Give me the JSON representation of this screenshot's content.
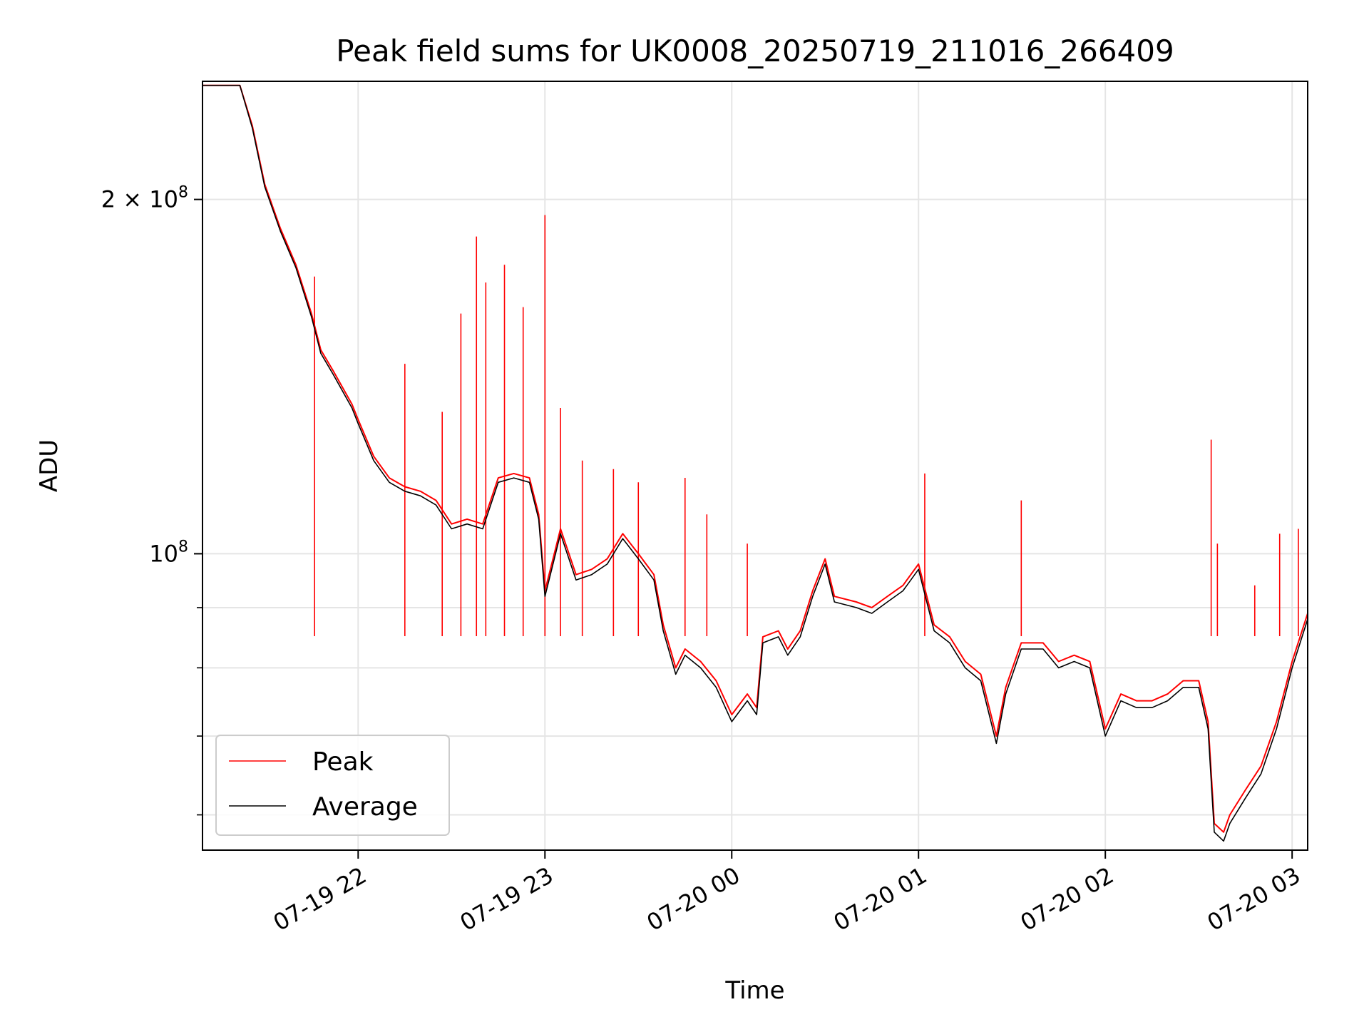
{
  "chart_data": {
    "type": "line",
    "title": "Peak field sums for UK0008_20250719_211016_266409",
    "xlabel": "Time",
    "ylabel": "ADU",
    "yscale": "log",
    "ylim": [
      56000000,
      252000000
    ],
    "xlim": [
      "2025-07-19 21:10",
      "2025-07-20 03:05"
    ],
    "x_tick_labels": [
      "07-19 22",
      "07-19 23",
      "07-20 00",
      "07-20 01",
      "07-20 02",
      "07-20 03"
    ],
    "x_ticks": [
      "2025-07-19 22:00",
      "2025-07-19 23:00",
      "2025-07-20 00:00",
      "2025-07-20 01:00",
      "2025-07-20 02:00",
      "2025-07-20 03:00"
    ],
    "y_tick_labels": [
      {
        "value": 200000000,
        "mantissa": "2",
        "exp": "8"
      },
      {
        "value": 100000000,
        "mantissa": "",
        "exp": "8"
      }
    ],
    "y_minor_ticks": [
      60000000,
      70000000,
      80000000,
      90000000
    ],
    "grid": true,
    "legend_position": "lower-left",
    "series": [
      {
        "name": "Average",
        "color": "#000000",
        "points": [
          [
            "2025-07-19 21:10",
            250000000
          ],
          [
            "2025-07-19 21:22",
            250000000
          ],
          [
            "2025-07-19 21:26",
            230000000
          ],
          [
            "2025-07-19 21:30",
            205000000
          ],
          [
            "2025-07-19 21:35",
            188000000
          ],
          [
            "2025-07-19 21:40",
            175000000
          ],
          [
            "2025-07-19 21:45",
            159000000
          ],
          [
            "2025-07-19 21:48",
            148000000
          ],
          [
            "2025-07-19 21:52",
            142000000
          ],
          [
            "2025-07-19 21:58",
            133000000
          ],
          [
            "2025-07-19 22:00",
            129000000
          ],
          [
            "2025-07-19 22:05",
            120000000
          ],
          [
            "2025-07-19 22:10",
            115000000
          ],
          [
            "2025-07-19 22:15",
            113000000
          ],
          [
            "2025-07-19 22:20",
            112000000
          ],
          [
            "2025-07-19 22:25",
            110000000
          ],
          [
            "2025-07-19 22:30",
            105000000
          ],
          [
            "2025-07-19 22:35",
            106000000
          ],
          [
            "2025-07-19 22:40",
            105000000
          ],
          [
            "2025-07-19 22:45",
            115000000
          ],
          [
            "2025-07-19 22:50",
            116000000
          ],
          [
            "2025-07-19 22:55",
            115000000
          ],
          [
            "2025-07-19 22:58",
            107000000
          ],
          [
            "2025-07-19 23:00",
            92000000
          ],
          [
            "2025-07-19 23:03",
            99000000
          ],
          [
            "2025-07-19 23:05",
            104000000
          ],
          [
            "2025-07-19 23:10",
            95000000
          ],
          [
            "2025-07-19 23:15",
            96000000
          ],
          [
            "2025-07-19 23:20",
            98000000
          ],
          [
            "2025-07-19 23:25",
            103000000
          ],
          [
            "2025-07-19 23:30",
            99000000
          ],
          [
            "2025-07-19 23:35",
            95000000
          ],
          [
            "2025-07-19 23:38",
            86000000
          ],
          [
            "2025-07-19 23:42",
            79000000
          ],
          [
            "2025-07-19 23:45",
            82000000
          ],
          [
            "2025-07-19 23:50",
            80000000
          ],
          [
            "2025-07-19 23:55",
            77000000
          ],
          [
            "2025-07-20 00:00",
            72000000
          ],
          [
            "2025-07-20 00:05",
            75000000
          ],
          [
            "2025-07-20 00:08",
            73000000
          ],
          [
            "2025-07-20 00:10",
            84000000
          ],
          [
            "2025-07-20 00:15",
            85000000
          ],
          [
            "2025-07-20 00:18",
            82000000
          ],
          [
            "2025-07-20 00:22",
            85000000
          ],
          [
            "2025-07-20 00:26",
            92000000
          ],
          [
            "2025-07-20 00:30",
            98000000
          ],
          [
            "2025-07-20 00:33",
            91000000
          ],
          [
            "2025-07-20 00:40",
            90000000
          ],
          [
            "2025-07-20 00:45",
            89000000
          ],
          [
            "2025-07-20 00:50",
            91000000
          ],
          [
            "2025-07-20 00:55",
            93000000
          ],
          [
            "2025-07-20 01:00",
            97000000
          ],
          [
            "2025-07-20 01:05",
            86000000
          ],
          [
            "2025-07-20 01:10",
            84000000
          ],
          [
            "2025-07-20 01:15",
            80000000
          ],
          [
            "2025-07-20 01:20",
            78000000
          ],
          [
            "2025-07-20 01:25",
            69000000
          ],
          [
            "2025-07-20 01:28",
            76000000
          ],
          [
            "2025-07-20 01:33",
            83000000
          ],
          [
            "2025-07-20 01:40",
            83000000
          ],
          [
            "2025-07-20 01:45",
            80000000
          ],
          [
            "2025-07-20 01:50",
            81000000
          ],
          [
            "2025-07-20 01:55",
            80000000
          ],
          [
            "2025-07-20 02:00",
            70000000
          ],
          [
            "2025-07-20 02:05",
            75000000
          ],
          [
            "2025-07-20 02:10",
            74000000
          ],
          [
            "2025-07-20 02:15",
            74000000
          ],
          [
            "2025-07-20 02:20",
            75000000
          ],
          [
            "2025-07-20 02:25",
            77000000
          ],
          [
            "2025-07-20 02:30",
            77000000
          ],
          [
            "2025-07-20 02:33",
            71000000
          ],
          [
            "2025-07-20 02:35",
            58000000
          ],
          [
            "2025-07-20 02:38",
            57000000
          ],
          [
            "2025-07-20 02:40",
            59000000
          ],
          [
            "2025-07-20 02:45",
            62000000
          ],
          [
            "2025-07-20 02:50",
            65000000
          ],
          [
            "2025-07-20 02:55",
            71000000
          ],
          [
            "2025-07-20 03:00",
            80000000
          ],
          [
            "2025-07-20 03:05",
            88000000
          ]
        ]
      },
      {
        "name": "Peak",
        "color": "#ff0000",
        "points": [
          [
            "2025-07-19 21:10",
            250000000
          ],
          [
            "2025-07-19 21:22",
            250000000
          ],
          [
            "2025-07-19 21:26",
            231000000
          ],
          [
            "2025-07-19 21:30",
            206000000
          ],
          [
            "2025-07-19 21:35",
            189000000
          ],
          [
            "2025-07-19 21:40",
            176000000
          ],
          [
            "2025-07-19 21:45",
            160000000
          ],
          [
            "2025-07-19 21:48",
            149000000
          ],
          [
            "2025-07-19 21:52",
            143000000
          ],
          [
            "2025-07-19 21:58",
            134000000
          ],
          [
            "2025-07-19 22:00",
            130000000
          ],
          [
            "2025-07-19 22:05",
            121000000
          ],
          [
            "2025-07-19 22:10",
            116000000
          ],
          [
            "2025-07-19 22:15",
            114000000
          ],
          [
            "2025-07-19 22:20",
            113000000
          ],
          [
            "2025-07-19 22:25",
            111000000
          ],
          [
            "2025-07-19 22:30",
            106000000
          ],
          [
            "2025-07-19 22:35",
            107000000
          ],
          [
            "2025-07-19 22:40",
            106000000
          ],
          [
            "2025-07-19 22:45",
            116000000
          ],
          [
            "2025-07-19 22:50",
            117000000
          ],
          [
            "2025-07-19 22:55",
            116000000
          ],
          [
            "2025-07-19 22:58",
            108000000
          ],
          [
            "2025-07-19 23:00",
            93000000
          ],
          [
            "2025-07-19 23:03",
            100000000
          ],
          [
            "2025-07-19 23:05",
            105000000
          ],
          [
            "2025-07-19 23:10",
            96000000
          ],
          [
            "2025-07-19 23:15",
            97000000
          ],
          [
            "2025-07-19 23:20",
            99000000
          ],
          [
            "2025-07-19 23:25",
            104000000
          ],
          [
            "2025-07-19 23:30",
            100000000
          ],
          [
            "2025-07-19 23:35",
            96000000
          ],
          [
            "2025-07-19 23:38",
            87000000
          ],
          [
            "2025-07-19 23:42",
            80000000
          ],
          [
            "2025-07-19 23:45",
            83000000
          ],
          [
            "2025-07-19 23:50",
            81000000
          ],
          [
            "2025-07-19 23:55",
            78000000
          ],
          [
            "2025-07-20 00:00",
            73000000
          ],
          [
            "2025-07-20 00:05",
            76000000
          ],
          [
            "2025-07-20 00:08",
            74000000
          ],
          [
            "2025-07-20 00:10",
            85000000
          ],
          [
            "2025-07-20 00:15",
            86000000
          ],
          [
            "2025-07-20 00:18",
            83000000
          ],
          [
            "2025-07-20 00:22",
            86000000
          ],
          [
            "2025-07-20 00:26",
            93000000
          ],
          [
            "2025-07-20 00:30",
            99000000
          ],
          [
            "2025-07-20 00:33",
            92000000
          ],
          [
            "2025-07-20 00:40",
            91000000
          ],
          [
            "2025-07-20 00:45",
            90000000
          ],
          [
            "2025-07-20 00:50",
            92000000
          ],
          [
            "2025-07-20 00:55",
            94000000
          ],
          [
            "2025-07-20 01:00",
            98000000
          ],
          [
            "2025-07-20 01:05",
            87000000
          ],
          [
            "2025-07-20 01:10",
            85000000
          ],
          [
            "2025-07-20 01:15",
            81000000
          ],
          [
            "2025-07-20 01:20",
            79000000
          ],
          [
            "2025-07-20 01:25",
            70000000
          ],
          [
            "2025-07-20 01:28",
            77000000
          ],
          [
            "2025-07-20 01:33",
            84000000
          ],
          [
            "2025-07-20 01:40",
            84000000
          ],
          [
            "2025-07-20 01:45",
            81000000
          ],
          [
            "2025-07-20 01:50",
            82000000
          ],
          [
            "2025-07-20 01:55",
            81000000
          ],
          [
            "2025-07-20 02:00",
            71000000
          ],
          [
            "2025-07-20 02:05",
            76000000
          ],
          [
            "2025-07-20 02:10",
            75000000
          ],
          [
            "2025-07-20 02:15",
            75000000
          ],
          [
            "2025-07-20 02:20",
            76000000
          ],
          [
            "2025-07-20 02:25",
            78000000
          ],
          [
            "2025-07-20 02:30",
            78000000
          ],
          [
            "2025-07-20 02:33",
            72000000
          ],
          [
            "2025-07-20 02:35",
            59000000
          ],
          [
            "2025-07-20 02:38",
            58000000
          ],
          [
            "2025-07-20 02:40",
            60000000
          ],
          [
            "2025-07-20 02:45",
            63000000
          ],
          [
            "2025-07-20 02:50",
            66000000
          ],
          [
            "2025-07-20 02:55",
            72000000
          ],
          [
            "2025-07-20 03:00",
            81000000
          ],
          [
            "2025-07-20 03:05",
            89000000
          ]
        ],
        "spikes": [
          [
            "2025-07-19 21:46",
            172000000
          ],
          [
            "2025-07-19 22:15",
            145000000
          ],
          [
            "2025-07-19 22:27",
            132000000
          ],
          [
            "2025-07-19 22:33",
            160000000
          ],
          [
            "2025-07-19 22:38",
            186000000
          ],
          [
            "2025-07-19 22:41",
            170000000
          ],
          [
            "2025-07-19 22:47",
            176000000
          ],
          [
            "2025-07-19 22:53",
            162000000
          ],
          [
            "2025-07-19 23:00",
            194000000
          ],
          [
            "2025-07-19 23:05",
            133000000
          ],
          [
            "2025-07-19 23:12",
            120000000
          ],
          [
            "2025-07-19 23:22",
            118000000
          ],
          [
            "2025-07-19 23:30",
            115000000
          ],
          [
            "2025-07-19 23:45",
            116000000
          ],
          [
            "2025-07-19 23:52",
            108000000
          ],
          [
            "2025-07-20 00:05",
            102000000
          ],
          [
            "2025-07-20 01:02",
            117000000
          ],
          [
            "2025-07-20 01:33",
            111000000
          ],
          [
            "2025-07-20 02:34",
            125000000
          ],
          [
            "2025-07-20 02:36",
            102000000
          ],
          [
            "2025-07-20 02:48",
            94000000
          ],
          [
            "2025-07-20 02:56",
            104000000
          ],
          [
            "2025-07-20 03:02",
            105000000
          ]
        ]
      }
    ]
  }
}
